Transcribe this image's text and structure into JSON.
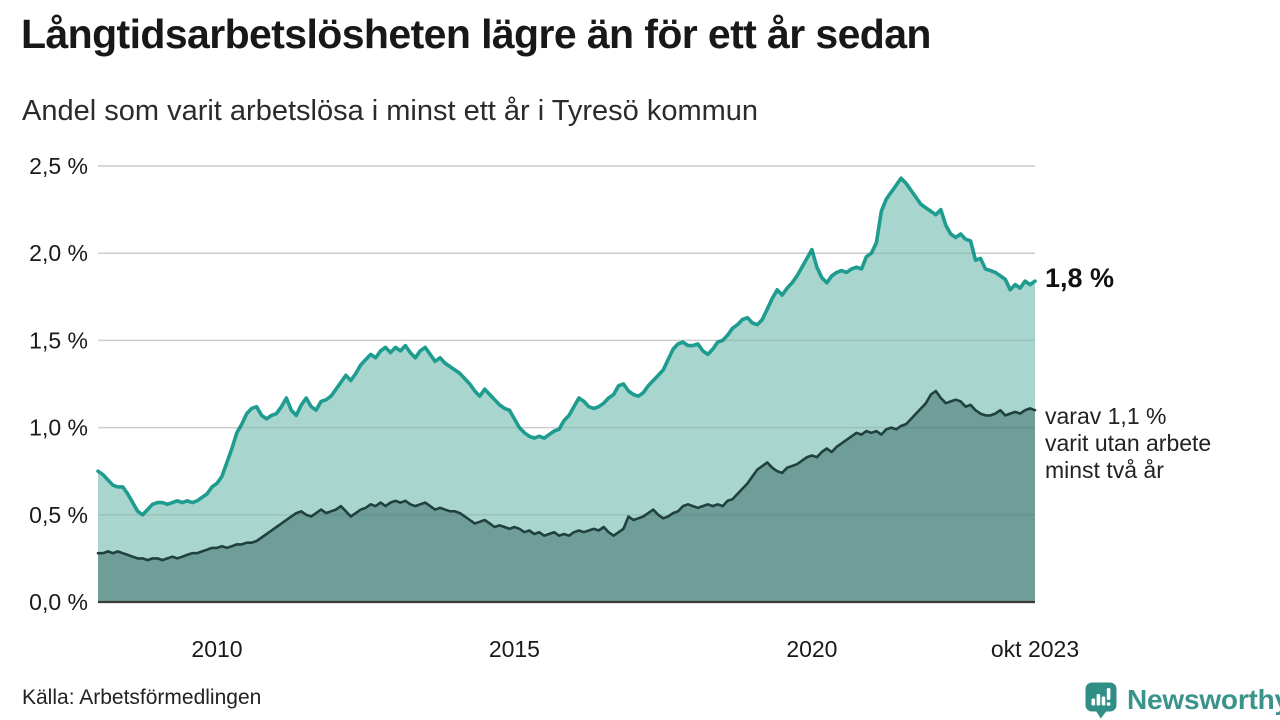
{
  "header": {
    "title": "Långtidsarbetslösheten lägre än för ett år sedan",
    "subtitle": "Andel som varit arbetslösa i minst ett år i Tyresö kommun"
  },
  "chart_data": {
    "type": "area",
    "title": "Långtidsarbetslösheten lägre än för ett år sedan",
    "subtitle": "Andel som varit arbetslösa i minst ett år i Tyresö kommun",
    "unit": "%",
    "x_start": "2008-01",
    "x_end": "2023-10",
    "x_interval": "monthly",
    "ylim": [
      0,
      2.5
    ],
    "grid": "horizontal",
    "legend_position": "none",
    "yticks": [
      {
        "value": 0.0,
        "label": "0,0 %"
      },
      {
        "value": 0.5,
        "label": "0,5 %"
      },
      {
        "value": 1.0,
        "label": "1,0 %"
      },
      {
        "value": 1.5,
        "label": "1,5 %"
      },
      {
        "value": 2.0,
        "label": "2,0 %"
      },
      {
        "value": 2.5,
        "label": "2,5 %"
      }
    ],
    "xticks": [
      {
        "label": "2010",
        "month_index": 24
      },
      {
        "label": "2015",
        "month_index": 84
      },
      {
        "label": "2020",
        "month_index": 144
      },
      {
        "label": "okt 2023",
        "month_index": 189
      }
    ],
    "series": [
      {
        "name": "Arbetslösa minst ett år",
        "line_color": "#1d9c8f",
        "fill_color": "#a8d5cd",
        "line_width": 3.6,
        "latest_value": 1.8,
        "values": [
          0.75,
          0.73,
          0.7,
          0.67,
          0.66,
          0.66,
          0.62,
          0.57,
          0.52,
          0.5,
          0.53,
          0.56,
          0.57,
          0.57,
          0.56,
          0.57,
          0.58,
          0.57,
          0.58,
          0.57,
          0.58,
          0.6,
          0.62,
          0.66,
          0.68,
          0.72,
          0.8,
          0.88,
          0.97,
          1.02,
          1.08,
          1.11,
          1.12,
          1.07,
          1.05,
          1.07,
          1.08,
          1.12,
          1.17,
          1.1,
          1.07,
          1.13,
          1.17,
          1.12,
          1.1,
          1.15,
          1.16,
          1.18,
          1.22,
          1.26,
          1.3,
          1.27,
          1.31,
          1.36,
          1.39,
          1.42,
          1.4,
          1.44,
          1.46,
          1.43,
          1.46,
          1.44,
          1.47,
          1.43,
          1.4,
          1.44,
          1.46,
          1.42,
          1.38,
          1.4,
          1.37,
          1.35,
          1.33,
          1.31,
          1.28,
          1.25,
          1.21,
          1.18,
          1.22,
          1.19,
          1.16,
          1.13,
          1.11,
          1.1,
          1.05,
          1.0,
          0.97,
          0.95,
          0.94,
          0.95,
          0.94,
          0.96,
          0.98,
          0.99,
          1.04,
          1.07,
          1.12,
          1.17,
          1.15,
          1.12,
          1.11,
          1.12,
          1.14,
          1.17,
          1.19,
          1.24,
          1.25,
          1.21,
          1.19,
          1.18,
          1.2,
          1.24,
          1.27,
          1.3,
          1.33,
          1.39,
          1.45,
          1.48,
          1.49,
          1.47,
          1.47,
          1.48,
          1.44,
          1.42,
          1.45,
          1.49,
          1.5,
          1.53,
          1.57,
          1.59,
          1.62,
          1.63,
          1.6,
          1.59,
          1.62,
          1.68,
          1.74,
          1.79,
          1.76,
          1.8,
          1.83,
          1.87,
          1.92,
          1.97,
          2.02,
          1.92,
          1.86,
          1.83,
          1.87,
          1.89,
          1.9,
          1.89,
          1.91,
          1.92,
          1.91,
          1.98,
          2.0,
          2.06,
          2.24,
          2.31,
          2.35,
          2.39,
          2.43,
          2.4,
          2.36,
          2.32,
          2.28,
          2.26,
          2.24,
          2.22,
          2.25,
          2.16,
          2.11,
          2.09,
          2.11,
          2.08,
          2.07,
          1.96,
          1.97,
          1.91,
          1.9,
          1.89,
          1.87,
          1.85,
          1.79,
          1.82,
          1.8,
          1.84,
          1.82,
          1.84
        ]
      },
      {
        "name": "varav arbetslösa minst två år",
        "line_color": "#21413f",
        "fill_color": "#6f9e98",
        "line_width": 2.6,
        "latest_value": 1.1,
        "values": [
          0.28,
          0.28,
          0.29,
          0.28,
          0.29,
          0.28,
          0.27,
          0.26,
          0.25,
          0.25,
          0.24,
          0.25,
          0.25,
          0.24,
          0.25,
          0.26,
          0.25,
          0.26,
          0.27,
          0.28,
          0.28,
          0.29,
          0.3,
          0.31,
          0.31,
          0.32,
          0.31,
          0.32,
          0.33,
          0.33,
          0.34,
          0.34,
          0.35,
          0.37,
          0.39,
          0.41,
          0.43,
          0.45,
          0.47,
          0.49,
          0.51,
          0.52,
          0.5,
          0.49,
          0.51,
          0.53,
          0.51,
          0.52,
          0.53,
          0.55,
          0.52,
          0.49,
          0.51,
          0.53,
          0.54,
          0.56,
          0.55,
          0.57,
          0.55,
          0.57,
          0.58,
          0.57,
          0.58,
          0.56,
          0.55,
          0.56,
          0.57,
          0.55,
          0.53,
          0.54,
          0.53,
          0.52,
          0.52,
          0.51,
          0.49,
          0.47,
          0.45,
          0.46,
          0.47,
          0.45,
          0.43,
          0.44,
          0.43,
          0.42,
          0.43,
          0.42,
          0.4,
          0.41,
          0.39,
          0.4,
          0.38,
          0.39,
          0.4,
          0.38,
          0.39,
          0.38,
          0.4,
          0.41,
          0.4,
          0.41,
          0.42,
          0.41,
          0.43,
          0.4,
          0.38,
          0.4,
          0.42,
          0.49,
          0.47,
          0.48,
          0.49,
          0.51,
          0.53,
          0.5,
          0.48,
          0.49,
          0.51,
          0.52,
          0.55,
          0.56,
          0.55,
          0.54,
          0.55,
          0.56,
          0.55,
          0.56,
          0.55,
          0.58,
          0.59,
          0.62,
          0.65,
          0.68,
          0.72,
          0.76,
          0.78,
          0.8,
          0.77,
          0.75,
          0.74,
          0.77,
          0.78,
          0.79,
          0.81,
          0.83,
          0.84,
          0.83,
          0.86,
          0.88,
          0.86,
          0.89,
          0.91,
          0.93,
          0.95,
          0.97,
          0.96,
          0.98,
          0.97,
          0.98,
          0.96,
          0.99,
          1.0,
          0.99,
          1.01,
          1.02,
          1.05,
          1.08,
          1.11,
          1.14,
          1.19,
          1.21,
          1.17,
          1.14,
          1.15,
          1.16,
          1.15,
          1.12,
          1.13,
          1.1,
          1.08,
          1.07,
          1.07,
          1.08,
          1.1,
          1.07,
          1.08,
          1.09,
          1.08,
          1.1,
          1.11,
          1.1
        ]
      }
    ]
  },
  "annotations": {
    "latest_value_label": "1,8 %",
    "two_year_note_lines": [
      "varav 1,1 %",
      "varit utan arbete",
      "minst två år"
    ]
  },
  "footer": {
    "source": "Källa: Arbetsförmedlingen",
    "brand": "Newsworthy"
  },
  "colors": {
    "accent_teal": "#1d9c8f",
    "light_fill": "#a8d5cd",
    "dark_fill": "#6f9e98",
    "dark_line": "#21413f",
    "gridline": "#e2e2e2",
    "axis": "#3a3a3a",
    "brand_teal": "#2f8e85",
    "brand_text": "#3a948b",
    "text_dark": "#181818"
  }
}
